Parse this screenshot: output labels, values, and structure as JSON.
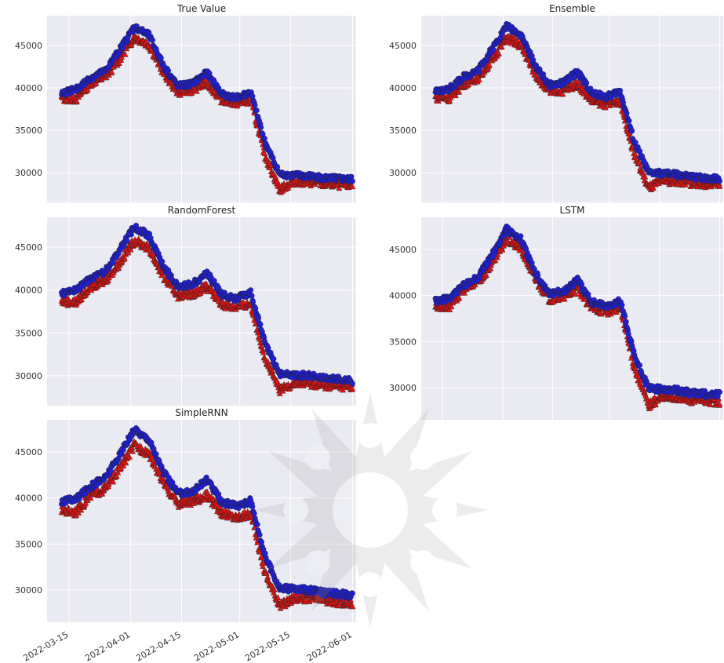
{
  "colors": {
    "panel_bg": "#eaeaf2",
    "grid": "#ffffff",
    "upper_marker": "#1f1fd6",
    "lower_marker": "#e01414",
    "edge": "#222222",
    "watermark": "#9a9a9a"
  },
  "chart_data": [
    {
      "type": "scatter",
      "title": "True Value",
      "yticks": [
        "30000",
        "35000",
        "40000",
        "45000"
      ],
      "ylim": [
        26500,
        48500
      ],
      "xlim": [
        "2022-03-09",
        "2022-06-02"
      ],
      "grid": true,
      "x": [
        "2022-03-13",
        "2022-03-17",
        "2022-03-21",
        "2022-03-25",
        "2022-03-29",
        "2022-04-02",
        "2022-04-06",
        "2022-04-10",
        "2022-04-14",
        "2022-04-18",
        "2022-04-22",
        "2022-04-26",
        "2022-04-30",
        "2022-05-04",
        "2022-05-08",
        "2022-05-12",
        "2022-05-16",
        "2022-05-20",
        "2022-05-24",
        "2022-05-28",
        "2022-06-01"
      ],
      "series": [
        {
          "values": [
            39400,
            39800,
            41200,
            42000,
            44500,
            47200,
            46200,
            42600,
            40200,
            40500,
            41800,
            39300,
            38800,
            39500,
            33500,
            29800,
            29700,
            29600,
            29400,
            29300,
            29200
          ]
        },
        {
          "values": [
            38800,
            38700,
            40600,
            41300,
            43400,
            46000,
            45100,
            41800,
            39500,
            39800,
            40600,
            38600,
            38200,
            38600,
            32000,
            28000,
            29000,
            28900,
            28700,
            28600,
            28500
          ]
        }
      ]
    },
    {
      "type": "scatter",
      "title": "Ensemble",
      "yticks": [
        "30000",
        "35000",
        "40000",
        "45000"
      ],
      "ylim": [
        26500,
        48500
      ],
      "xlim": [
        "2022-03-09",
        "2022-06-02"
      ],
      "grid": true,
      "x": [
        "2022-03-13",
        "2022-03-17",
        "2022-03-21",
        "2022-03-25",
        "2022-03-29",
        "2022-04-02",
        "2022-04-06",
        "2022-04-10",
        "2022-04-14",
        "2022-04-18",
        "2022-04-22",
        "2022-04-26",
        "2022-04-30",
        "2022-05-04",
        "2022-05-08",
        "2022-05-12",
        "2022-05-16",
        "2022-05-20",
        "2022-05-24",
        "2022-05-28",
        "2022-06-01"
      ],
      "series": [
        {
          "values": [
            39500,
            39900,
            41300,
            42100,
            44600,
            47300,
            46300,
            42700,
            40300,
            40600,
            41900,
            39400,
            38900,
            39600,
            33600,
            30000,
            29900,
            29800,
            29500,
            29400,
            29300
          ]
        },
        {
          "values": [
            38900,
            38800,
            40500,
            41200,
            43300,
            45900,
            45000,
            41700,
            39500,
            39700,
            40500,
            38500,
            38100,
            38500,
            32100,
            28200,
            29100,
            29000,
            28800,
            28700,
            28600
          ]
        }
      ]
    },
    {
      "type": "scatter",
      "title": "RandomForest",
      "yticks": [
        "30000",
        "35000",
        "40000",
        "45000"
      ],
      "ylim": [
        26500,
        48500
      ],
      "xlim": [
        "2022-03-09",
        "2022-06-02"
      ],
      "grid": true,
      "x": [
        "2022-03-13",
        "2022-03-17",
        "2022-03-21",
        "2022-03-25",
        "2022-03-29",
        "2022-04-02",
        "2022-04-06",
        "2022-04-10",
        "2022-04-14",
        "2022-04-18",
        "2022-04-22",
        "2022-04-26",
        "2022-04-30",
        "2022-05-04",
        "2022-05-08",
        "2022-05-12",
        "2022-05-16",
        "2022-05-20",
        "2022-05-24",
        "2022-05-28",
        "2022-06-01"
      ],
      "series": [
        {
          "values": [
            39600,
            40000,
            41400,
            42200,
            44700,
            47400,
            46400,
            42800,
            40400,
            40700,
            42000,
            39500,
            39000,
            39700,
            33700,
            30200,
            30100,
            30000,
            29700,
            29600,
            29400
          ]
        },
        {
          "values": [
            38700,
            38600,
            40400,
            41100,
            43200,
            45800,
            44900,
            41600,
            39400,
            39600,
            40400,
            38400,
            38000,
            38400,
            32000,
            28300,
            29200,
            29100,
            28900,
            28800,
            28700
          ]
        }
      ]
    },
    {
      "type": "scatter",
      "title": "LSTM",
      "yticks": [
        "30000",
        "35000",
        "40000",
        "45000"
      ],
      "ylim": [
        26500,
        48500
      ],
      "xlim": [
        "2022-03-09",
        "2022-06-02"
      ],
      "grid": true,
      "x": [
        "2022-03-13",
        "2022-03-17",
        "2022-03-21",
        "2022-03-25",
        "2022-03-29",
        "2022-04-02",
        "2022-04-06",
        "2022-04-10",
        "2022-04-14",
        "2022-04-18",
        "2022-04-22",
        "2022-04-26",
        "2022-04-30",
        "2022-05-04",
        "2022-05-08",
        "2022-05-12",
        "2022-05-16",
        "2022-05-20",
        "2022-05-24",
        "2022-05-28",
        "2022-06-01"
      ],
      "series": [
        {
          "values": [
            39400,
            39700,
            41100,
            42000,
            44400,
            47200,
            46200,
            42500,
            40200,
            40400,
            41700,
            39300,
            38800,
            39400,
            33400,
            29900,
            29800,
            29700,
            29400,
            29300,
            29200
          ]
        },
        {
          "values": [
            38900,
            38800,
            40700,
            41400,
            43500,
            46100,
            45200,
            41900,
            39600,
            39900,
            40700,
            38700,
            38300,
            38700,
            32200,
            28100,
            29000,
            28900,
            28700,
            28600,
            28500
          ]
        }
      ]
    },
    {
      "type": "scatter",
      "title": "SimpleRNN",
      "yticks": [
        "30000",
        "35000",
        "40000",
        "45000"
      ],
      "ylim": [
        26500,
        48500
      ],
      "xlim": [
        "2022-03-09",
        "2022-06-02"
      ],
      "xticks": [
        "2022-03-15",
        "2022-04-01",
        "2022-04-15",
        "2022-05-01",
        "2022-05-15",
        "2022-06-01"
      ],
      "grid": true,
      "x": [
        "2022-03-13",
        "2022-03-17",
        "2022-03-21",
        "2022-03-25",
        "2022-03-29",
        "2022-04-02",
        "2022-04-06",
        "2022-04-10",
        "2022-04-14",
        "2022-04-18",
        "2022-04-22",
        "2022-04-26",
        "2022-04-30",
        "2022-05-04",
        "2022-05-08",
        "2022-05-12",
        "2022-05-16",
        "2022-05-20",
        "2022-05-24",
        "2022-05-28",
        "2022-06-01"
      ],
      "series": [
        {
          "values": [
            39600,
            39900,
            41300,
            42200,
            44700,
            47400,
            46400,
            42800,
            40500,
            40700,
            42000,
            39600,
            39100,
            39700,
            33700,
            30200,
            30100,
            30000,
            29700,
            29600,
            29400
          ]
        },
        {
          "values": [
            38700,
            38500,
            40300,
            41000,
            43200,
            45700,
            44900,
            41600,
            39400,
            39600,
            40300,
            38400,
            37900,
            38300,
            31900,
            28300,
            29200,
            29100,
            28900,
            28700,
            28600
          ]
        }
      ]
    }
  ]
}
